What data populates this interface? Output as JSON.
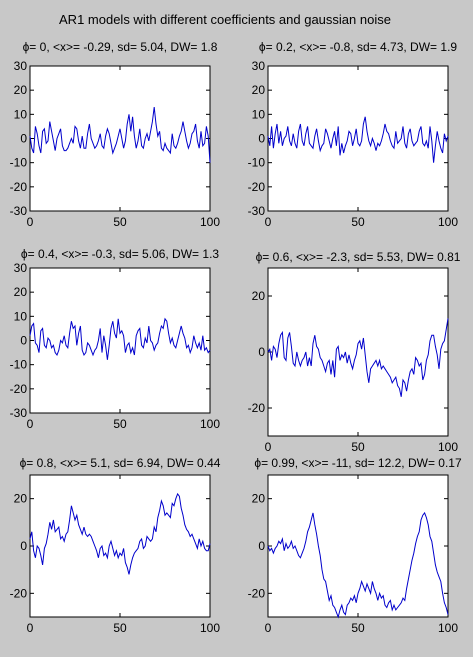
{
  "figure": {
    "title": "AR1 models with different coefficients and gaussian noise",
    "background": "#c8c8c8",
    "line_color": "#0000cc"
  },
  "chart_data": [
    {
      "type": "line",
      "title": "ϕ= 0, <x>= -0.29, sd= 5.04, DW= 1.8",
      "xlim": [
        0,
        100
      ],
      "ylim": [
        -30,
        30
      ],
      "xticks": [
        0,
        50,
        100
      ],
      "yticks": [
        30,
        20,
        10,
        0,
        -10,
        -20,
        -30
      ],
      "series": [
        {
          "x_start": 0,
          "x_step": 1,
          "values": [
            1,
            -4,
            -6,
            5,
            2,
            -3,
            -6,
            3,
            4,
            -2,
            -1,
            7,
            3,
            -1,
            -5,
            0,
            2,
            4,
            -3,
            -5,
            -5,
            -4,
            -2,
            0,
            -2,
            5,
            4,
            -1,
            -4,
            1,
            -4,
            -4,
            2,
            6,
            0,
            -2,
            -4,
            -3,
            -1,
            2,
            -3,
            -4,
            1,
            4,
            2,
            -2,
            -6,
            -4,
            -2,
            1,
            4,
            0,
            -4,
            -1,
            6,
            10,
            3,
            9,
            1,
            -4,
            -1,
            4,
            -3,
            -4,
            0,
            2,
            -1,
            3,
            7,
            13,
            6,
            1,
            3,
            -4,
            -5,
            -2,
            -4,
            -5,
            -6,
            2,
            -3,
            -4,
            -2,
            1,
            3,
            7,
            3,
            -1,
            -4,
            -2,
            2,
            3,
            6,
            -1,
            -4,
            3,
            -3,
            -2,
            5,
            1,
            -10
          ]
        }
      ]
    },
    {
      "type": "line",
      "title": "ϕ= 0.2, <x>= -0.8, sd= 4.73, DW= 1.9",
      "xlim": [
        0,
        100
      ],
      "ylim": [
        -30,
        30
      ],
      "xticks": [
        0,
        50,
        100
      ],
      "yticks": [
        30,
        20,
        10,
        0,
        -10,
        -20,
        -30
      ],
      "series": [
        {
          "x_start": 0,
          "x_step": 1,
          "values": [
            1,
            -3,
            5,
            -4,
            2,
            6,
            -2,
            3,
            -3,
            0,
            1,
            5,
            -1,
            -3,
            2,
            -2,
            -4,
            3,
            6,
            -1,
            -3,
            2,
            5,
            -2,
            -3,
            -4,
            1,
            4,
            -1,
            -5,
            -3,
            -2,
            4,
            2,
            -1,
            -4,
            0,
            3,
            -3,
            5,
            -7,
            -2,
            -6,
            -3,
            -1,
            3,
            2,
            -3,
            0,
            4,
            -2,
            -3,
            -1,
            6,
            9,
            3,
            -1,
            -3,
            0,
            -2,
            -5,
            -2,
            -3,
            -1,
            2,
            6,
            3,
            2,
            -1,
            -3,
            -4,
            3,
            -2,
            -1,
            0,
            5,
            -2,
            -4,
            2,
            4,
            -1,
            -3,
            -2,
            -1,
            3,
            5,
            -2,
            -3,
            -1,
            -4,
            5,
            -1,
            -10,
            -3,
            3,
            -1,
            -4,
            -6,
            2,
            -1,
            1
          ]
        }
      ]
    },
    {
      "type": "line",
      "title": "ϕ= 0.4, <x>= -0.3, sd= 5.06, DW= 1.3",
      "xlim": [
        0,
        100
      ],
      "ylim": [
        -30,
        30
      ],
      "xticks": [
        0,
        50,
        100
      ],
      "yticks": [
        30,
        20,
        10,
        0,
        -10,
        -20,
        -30
      ],
      "series": [
        {
          "x_start": 0,
          "x_step": 1,
          "values": [
            2,
            6,
            7,
            -1,
            -2,
            -5,
            4,
            5,
            -2,
            -3,
            1,
            0,
            -3,
            -2,
            -5,
            -6,
            -4,
            0,
            -1,
            2,
            -2,
            -3,
            3,
            8,
            5,
            6,
            -2,
            3,
            6,
            -4,
            -6,
            -5,
            -1,
            -2,
            -4,
            -6,
            -4,
            -3,
            0,
            5,
            -5,
            2,
            -2,
            -8,
            -2,
            5,
            8,
            3,
            1,
            9,
            3,
            4,
            2,
            -5,
            -2,
            -1,
            -5,
            -3,
            -6,
            2,
            4,
            5,
            -2,
            -3,
            1,
            -1,
            6,
            0,
            -1,
            -4,
            -2,
            -1,
            3,
            6,
            5,
            9,
            8,
            3,
            -1,
            1,
            -2,
            -3,
            0,
            3,
            6,
            3,
            1,
            -3,
            -2,
            -5,
            -3,
            2,
            -1,
            -3,
            -1,
            -4,
            2,
            -4,
            -3,
            -5,
            -4
          ]
        }
      ]
    },
    {
      "type": "line",
      "title": "ϕ= 0.6, <x>= -2.3, sd= 5.53, DW= 0.81",
      "xlim": [
        0,
        100
      ],
      "ylim": [
        -30,
        30
      ],
      "xticks": [
        0,
        50,
        100
      ],
      "yticks": [
        20,
        0,
        -20
      ],
      "series": [
        {
          "x_start": 0,
          "x_step": 1,
          "values": [
            0,
            1,
            -3,
            2,
            1,
            -2,
            3,
            6,
            7,
            -2,
            -3,
            5,
            7,
            2,
            -4,
            -5,
            0,
            -3,
            -5,
            -3,
            -2,
            0,
            -5,
            -2,
            -5,
            3,
            6,
            2,
            1,
            -2,
            -3,
            -5,
            -7,
            -4,
            -3,
            -8,
            -3,
            -9,
            1,
            2,
            -3,
            -1,
            -2,
            0,
            -4,
            -1,
            -4,
            -6,
            -3,
            -1,
            3,
            4,
            1,
            5,
            -1,
            -7,
            -11,
            -6,
            -5,
            -4,
            -3,
            -5,
            -3,
            -6,
            -5,
            -6,
            -7,
            -8,
            -9,
            -11,
            -10,
            -9,
            -12,
            -13,
            -16,
            -10,
            -11,
            -14,
            -10,
            -7,
            -6,
            -8,
            -2,
            -3,
            -5,
            -4,
            -10,
            -8,
            -3,
            -1,
            4,
            6,
            6,
            2,
            -1,
            -6,
            1,
            3,
            4,
            8,
            12
          ]
        }
      ]
    },
    {
      "type": "line",
      "title": "ϕ= 0.8, <x>= 5.1, sd= 6.94, DW= 0.44",
      "xlim": [
        0,
        100
      ],
      "ylim": [
        -30,
        30
      ],
      "xticks": [
        0,
        50,
        100
      ],
      "yticks": [
        20,
        0,
        -20
      ],
      "series": [
        {
          "x_start": 0,
          "x_step": 1,
          "values": [
            3,
            6,
            -2,
            -5,
            0,
            -1,
            -4,
            -8,
            -1,
            1,
            5,
            10,
            7,
            11,
            6,
            7,
            8,
            3,
            4,
            2,
            5,
            6,
            11,
            17,
            14,
            11,
            13,
            9,
            7,
            5,
            8,
            5,
            4,
            5,
            4,
            2,
            0,
            -2,
            -5,
            -1,
            0,
            -4,
            -3,
            -5,
            0,
            2,
            -1,
            -4,
            -2,
            -5,
            -3,
            -4,
            -1,
            -7,
            -9,
            -12,
            -8,
            -5,
            -3,
            -2,
            -1,
            2,
            3,
            -1,
            0,
            4,
            3,
            2,
            3,
            8,
            6,
            12,
            15,
            19,
            17,
            13,
            14,
            13,
            12,
            18,
            17,
            20,
            22,
            21,
            16,
            13,
            9,
            7,
            6,
            4,
            5,
            3,
            1,
            -1,
            3,
            0,
            2,
            -1,
            -2,
            -2,
            1
          ]
        }
      ]
    },
    {
      "type": "line",
      "title": "ϕ= 0.99, <x>= -11, sd= 12.2, DW= 0.17",
      "xlim": [
        0,
        100
      ],
      "ylim": [
        -30,
        30
      ],
      "xticks": [
        0,
        50,
        100
      ],
      "yticks": [
        20,
        0,
        -20
      ],
      "series": [
        {
          "x_start": 0,
          "x_step": 1,
          "values": [
            0,
            -2,
            -1,
            -3,
            -1,
            0,
            2,
            1,
            3,
            -2,
            1,
            -1,
            0,
            2,
            -1,
            0,
            -2,
            -4,
            -5,
            -3,
            -1,
            2,
            6,
            8,
            11,
            14,
            9,
            5,
            0,
            -4,
            -10,
            -14,
            -15,
            -19,
            -23,
            -21,
            -25,
            -26,
            -28,
            -31,
            -27,
            -25,
            -28,
            -29,
            -25,
            -24,
            -22,
            -23,
            -21,
            -24,
            -20,
            -18,
            -15,
            -17,
            -19,
            -16,
            -18,
            -20,
            -15,
            -18,
            -20,
            -23,
            -20,
            -22,
            -21,
            -25,
            -26,
            -24,
            -23,
            -27,
            -25,
            -27,
            -26,
            -25,
            -24,
            -22,
            -23,
            -18,
            -14,
            -10,
            -6,
            -3,
            1,
            4,
            6,
            11,
            13,
            14,
            12,
            9,
            4,
            2,
            -3,
            -8,
            -11,
            -13,
            -15,
            -20,
            -24,
            -26,
            -29
          ]
        }
      ]
    }
  ]
}
